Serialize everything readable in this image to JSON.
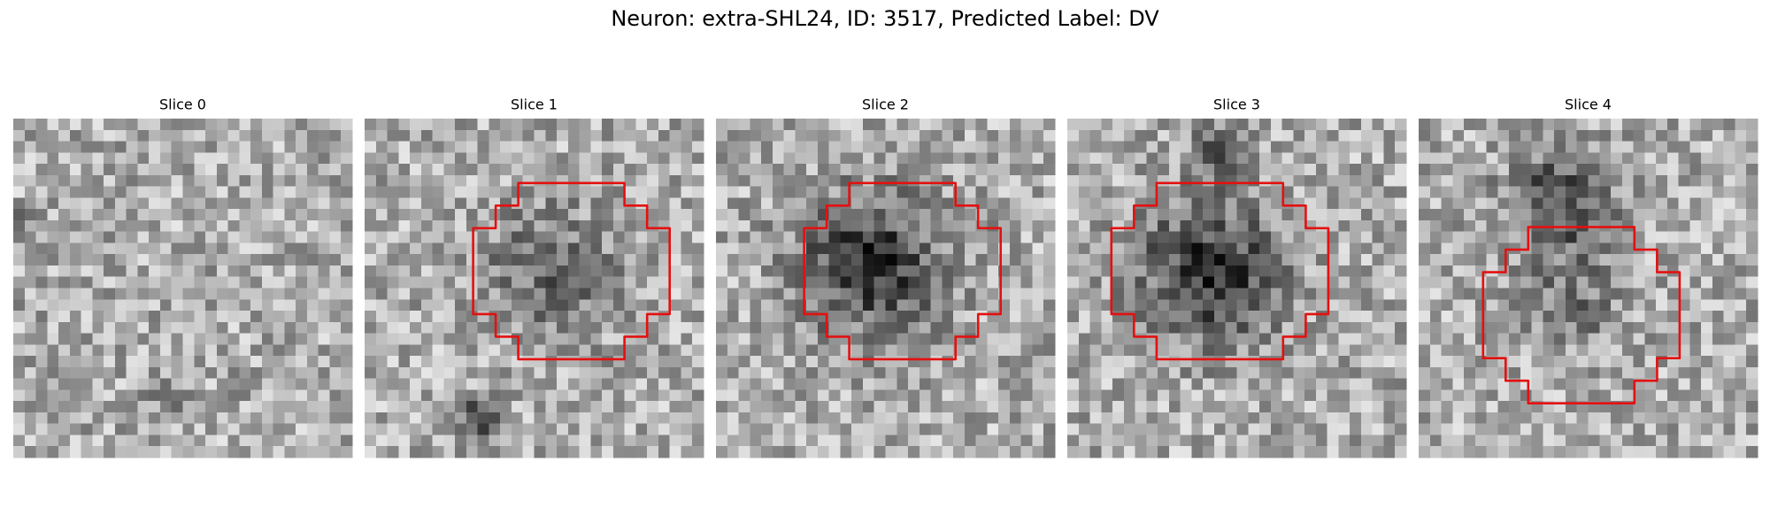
{
  "title": "Neuron: extra-SHL24, ID: 3517, Predicted Label: DV",
  "panels": [
    {
      "title": "Slice 0"
    },
    {
      "title": "Slice 1"
    },
    {
      "title": "Slice 2"
    },
    {
      "title": "Slice 3"
    },
    {
      "title": "Slice 4"
    }
  ]
}
